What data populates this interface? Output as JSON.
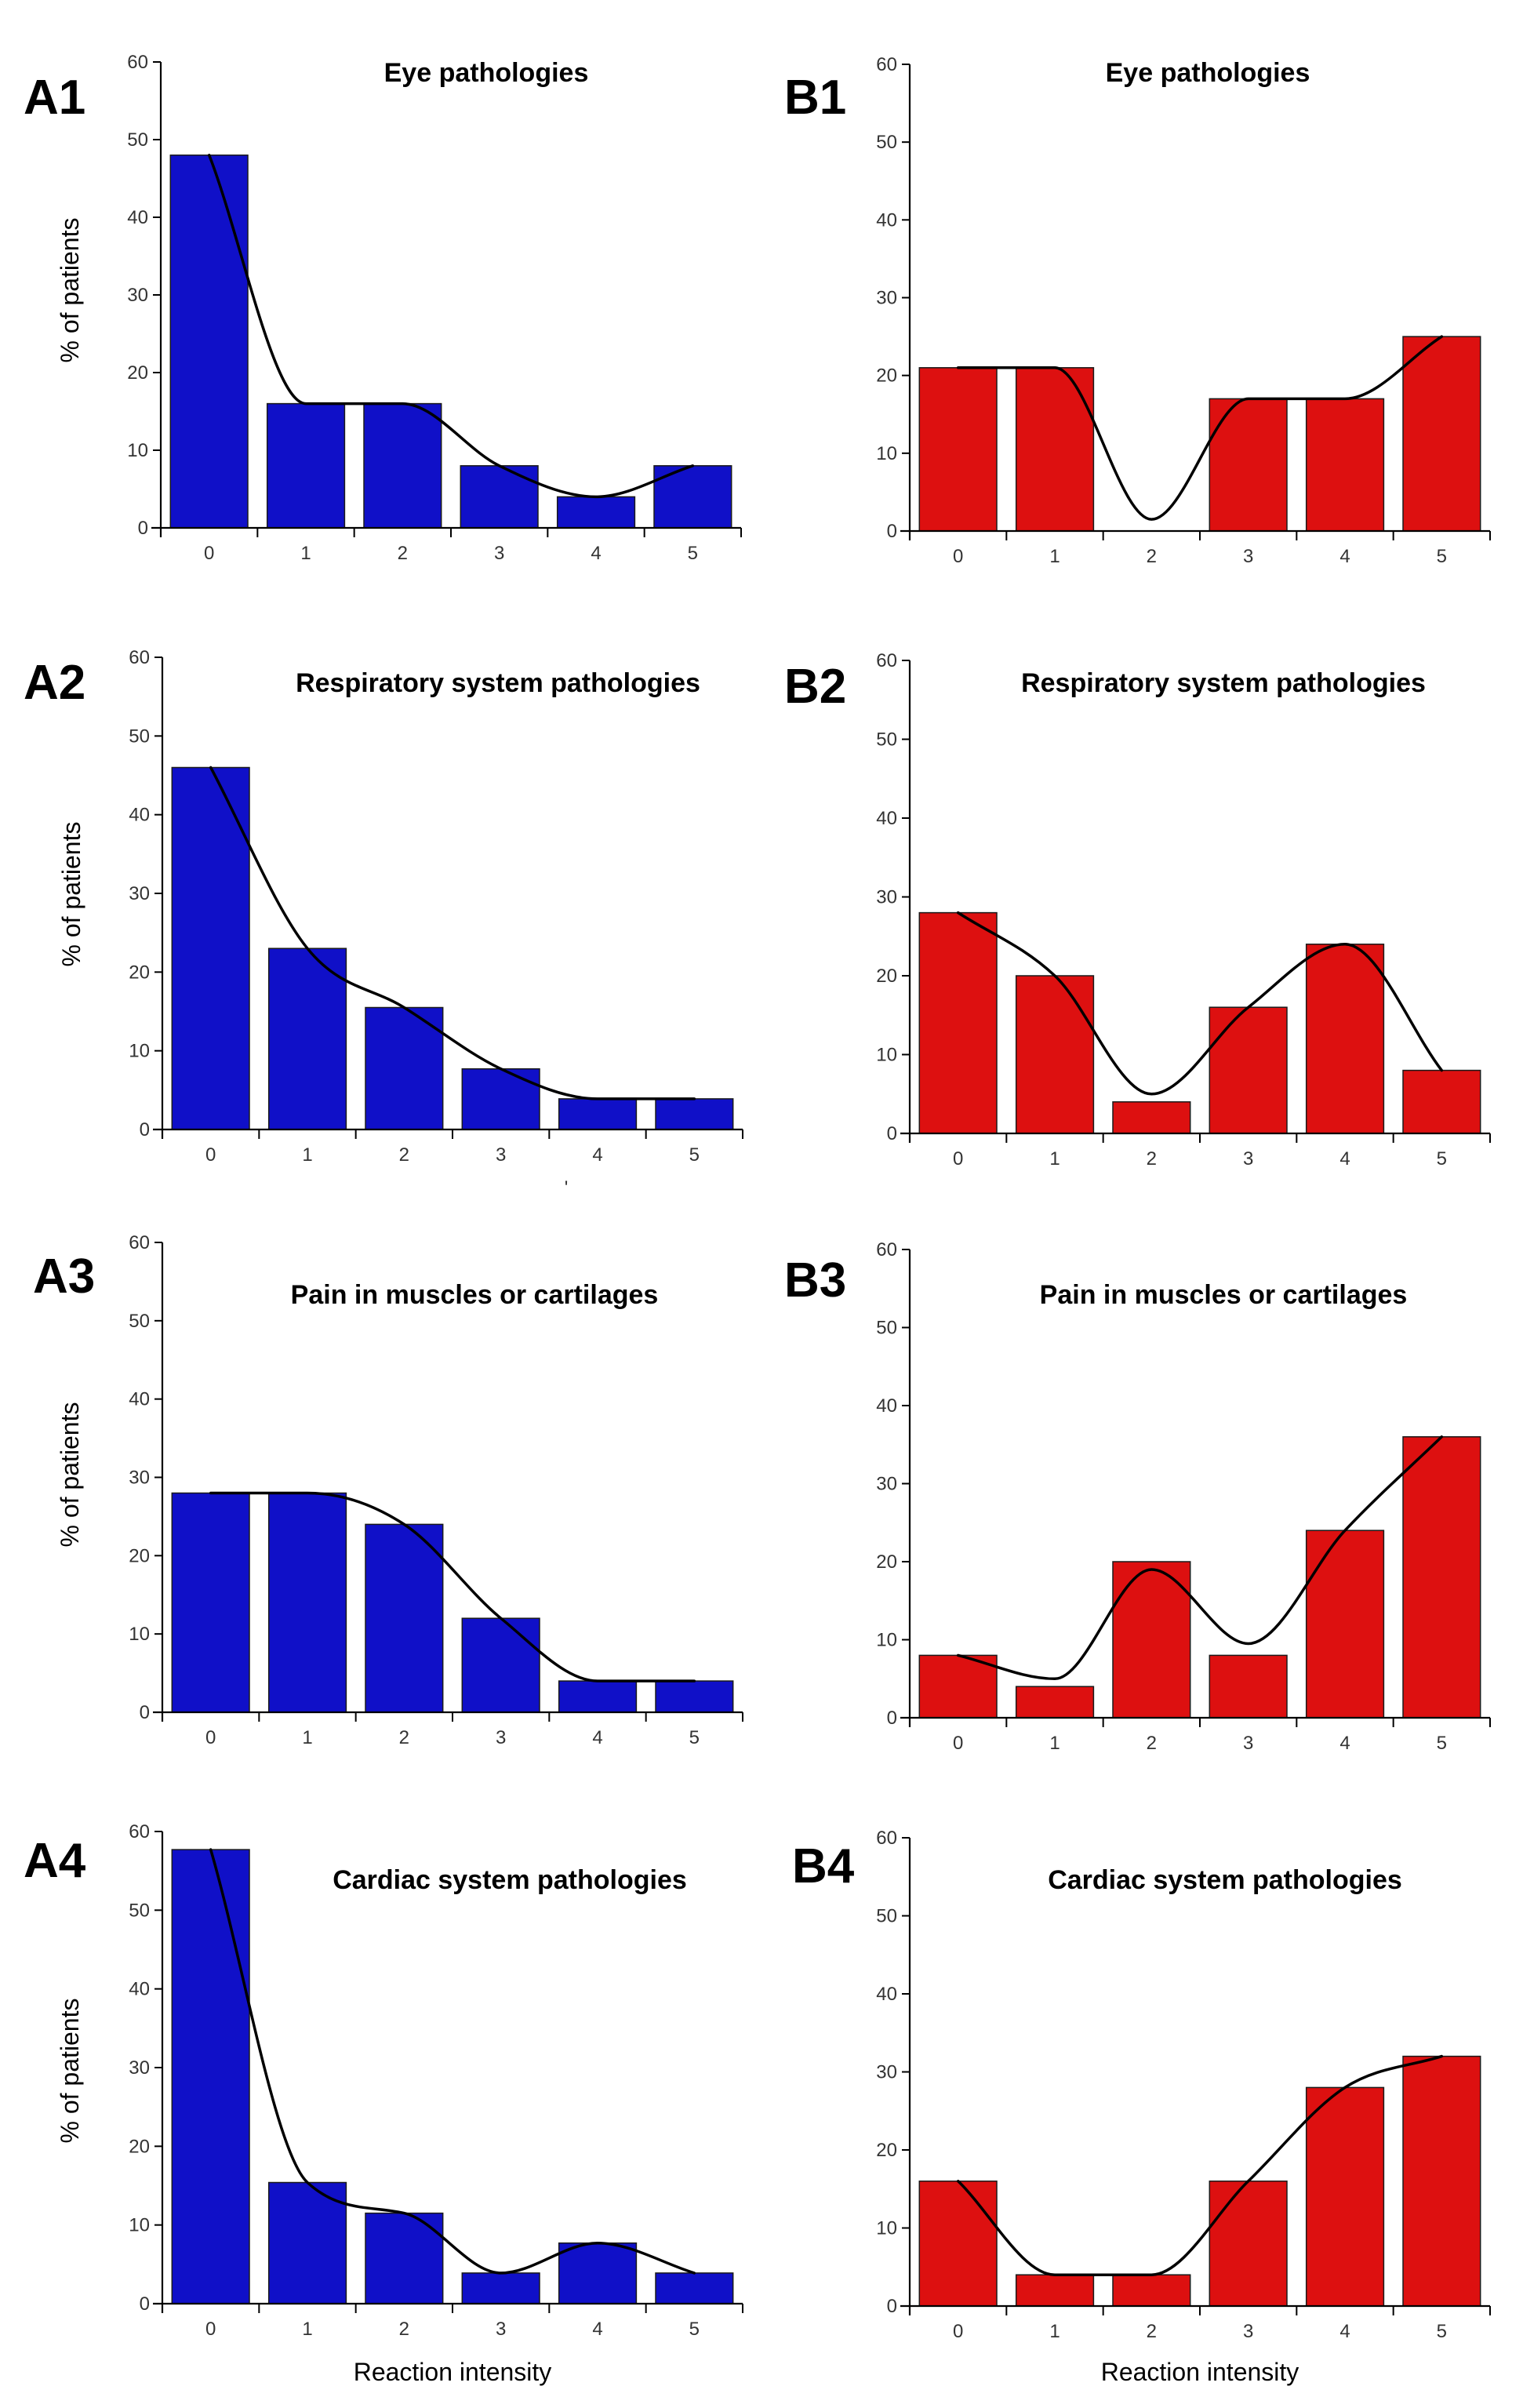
{
  "figure": {
    "colors": {
      "A": "#1010c8",
      "B": "#dd1010",
      "axis": "#000000",
      "trend": "#000000"
    },
    "stray_mark": "'"
  },
  "chart_data": [
    {
      "id": "A1",
      "type": "bar",
      "title": "Eye pathologies",
      "categories": [
        "0",
        "1",
        "2",
        "3",
        "4",
        "5"
      ],
      "values": [
        48,
        16,
        16,
        8,
        4,
        8
      ],
      "trend": [
        48,
        16,
        16,
        8,
        4,
        8
      ],
      "ylabel": "% of patients",
      "xlabel": "",
      "ylim": [
        0,
        60
      ],
      "yticks": [
        "0",
        "10",
        "20",
        "30",
        "40",
        "50",
        "60"
      ],
      "color_key": "A",
      "grid": false
    },
    {
      "id": "B1",
      "type": "bar",
      "title": "Eye pathologies",
      "categories": [
        "0",
        "1",
        "2",
        "3",
        "4",
        "5"
      ],
      "values": [
        21,
        21,
        0,
        17,
        17,
        25
      ],
      "trend": [
        21,
        21,
        1.5,
        17,
        17,
        25
      ],
      "ylabel": "",
      "xlabel": "",
      "ylim": [
        0,
        60
      ],
      "yticks": [
        "0",
        "10",
        "20",
        "30",
        "40",
        "50",
        "60"
      ],
      "color_key": "B",
      "grid": false
    },
    {
      "id": "A2",
      "type": "bar",
      "title": "Respiratory system pathologies",
      "categories": [
        "0",
        "1",
        "2",
        "3",
        "4",
        "5"
      ],
      "values": [
        46,
        23,
        15.5,
        7.7,
        3.9,
        3.9
      ],
      "trend": [
        46,
        23,
        15.5,
        7.7,
        3.9,
        3.9
      ],
      "ylabel": "% of patients",
      "xlabel": "",
      "ylim": [
        0,
        60
      ],
      "yticks": [
        "0",
        "10",
        "20",
        "30",
        "40",
        "50",
        "60"
      ],
      "color_key": "A",
      "grid": false
    },
    {
      "id": "B2",
      "type": "bar",
      "title": "Respiratory system pathologies",
      "categories": [
        "0",
        "1",
        "2",
        "3",
        "4",
        "5"
      ],
      "values": [
        28,
        20,
        4,
        16,
        24,
        8
      ],
      "trend": [
        28,
        20,
        5,
        16,
        24,
        8
      ],
      "ylabel": "",
      "xlabel": "",
      "ylim": [
        0,
        60
      ],
      "yticks": [
        "0",
        "10",
        "20",
        "30",
        "40",
        "50",
        "60"
      ],
      "color_key": "B",
      "grid": false
    },
    {
      "id": "A3",
      "type": "bar",
      "title": "Pain in muscles or cartilages",
      "categories": [
        "0",
        "1",
        "2",
        "3",
        "4",
        "5"
      ],
      "values": [
        28,
        28,
        24,
        12,
        4,
        4
      ],
      "trend": [
        28,
        28,
        24,
        12,
        4,
        4
      ],
      "ylabel": "% of patients",
      "xlabel": "",
      "ylim": [
        0,
        60
      ],
      "yticks": [
        "0",
        "10",
        "20",
        "30",
        "40",
        "50",
        "60"
      ],
      "color_key": "A",
      "grid": false
    },
    {
      "id": "B3",
      "type": "bar",
      "title": "Pain in muscles or cartilages",
      "categories": [
        "0",
        "1",
        "2",
        "3",
        "4",
        "5"
      ],
      "values": [
        8,
        4,
        20,
        8,
        24,
        36
      ],
      "trend": [
        8,
        5,
        19,
        9.5,
        24,
        36
      ],
      "ylabel": "",
      "xlabel": "",
      "ylim": [
        0,
        60
      ],
      "yticks": [
        "0",
        "10",
        "20",
        "30",
        "40",
        "50",
        "60"
      ],
      "color_key": "B",
      "grid": false
    },
    {
      "id": "A4",
      "type": "bar",
      "title": "Cardiac system pathologies",
      "categories": [
        "0",
        "1",
        "2",
        "3",
        "4",
        "5"
      ],
      "values": [
        57.7,
        15.4,
        11.5,
        3.9,
        7.7,
        3.9
      ],
      "trend": [
        57.7,
        15.4,
        11.5,
        3.9,
        7.7,
        3.9
      ],
      "ylabel": "% of patients",
      "xlabel": "Reaction intensity",
      "ylim": [
        0,
        60
      ],
      "yticks": [
        "0",
        "10",
        "20",
        "30",
        "40",
        "50",
        "60"
      ],
      "color_key": "A",
      "grid": false
    },
    {
      "id": "B4",
      "type": "bar",
      "title": "Cardiac system pathologies",
      "categories": [
        "0",
        "1",
        "2",
        "3",
        "4",
        "5"
      ],
      "values": [
        16,
        4,
        4,
        16,
        28,
        32
      ],
      "trend": [
        16,
        4,
        4,
        16,
        28,
        32
      ],
      "ylabel": "",
      "xlabel": "Reaction intensity",
      "ylim": [
        0,
        60
      ],
      "yticks": [
        "0",
        "10",
        "20",
        "30",
        "40",
        "50",
        "60"
      ],
      "color_key": "B",
      "grid": false
    }
  ]
}
